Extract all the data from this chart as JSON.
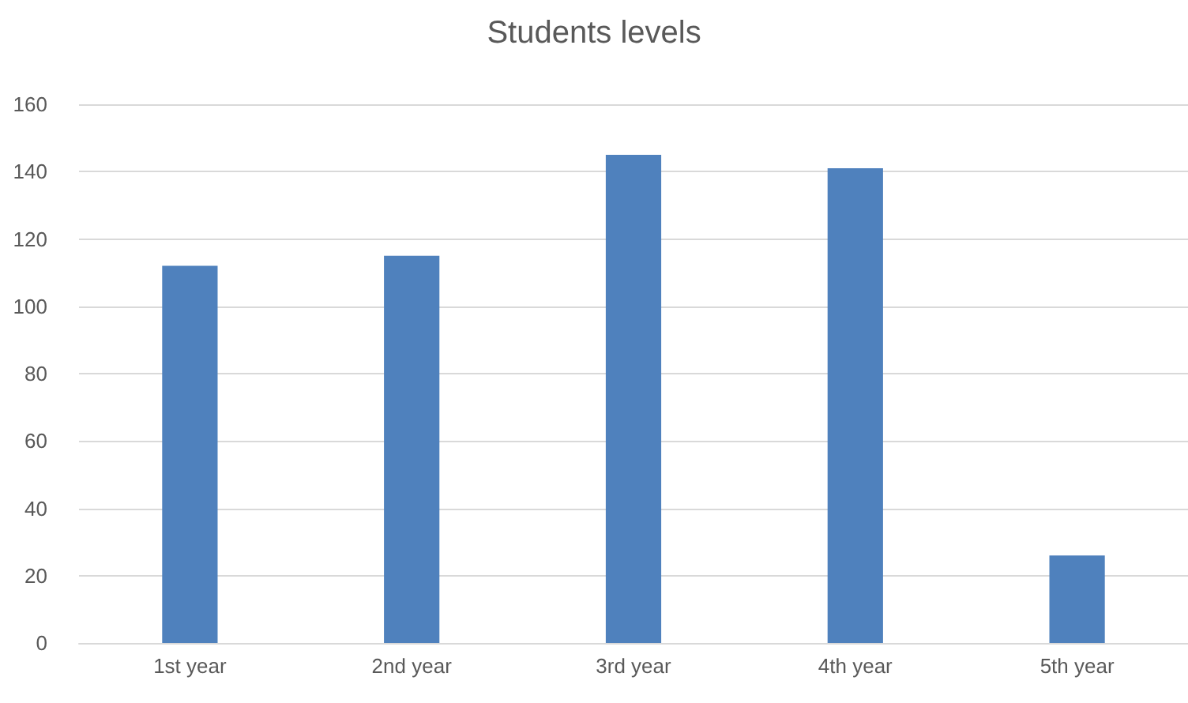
{
  "chart_data": {
    "type": "bar",
    "title": "Students levels",
    "categories": [
      "1st year",
      "2nd year",
      "3rd year",
      "4th year",
      "5th year"
    ],
    "values": [
      112,
      115,
      145,
      141,
      26
    ],
    "color": "#4f81bd",
    "ylim": [
      0,
      160
    ],
    "yticks": [
      0,
      20,
      40,
      60,
      80,
      100,
      120,
      140,
      160
    ],
    "grid": "y"
  }
}
